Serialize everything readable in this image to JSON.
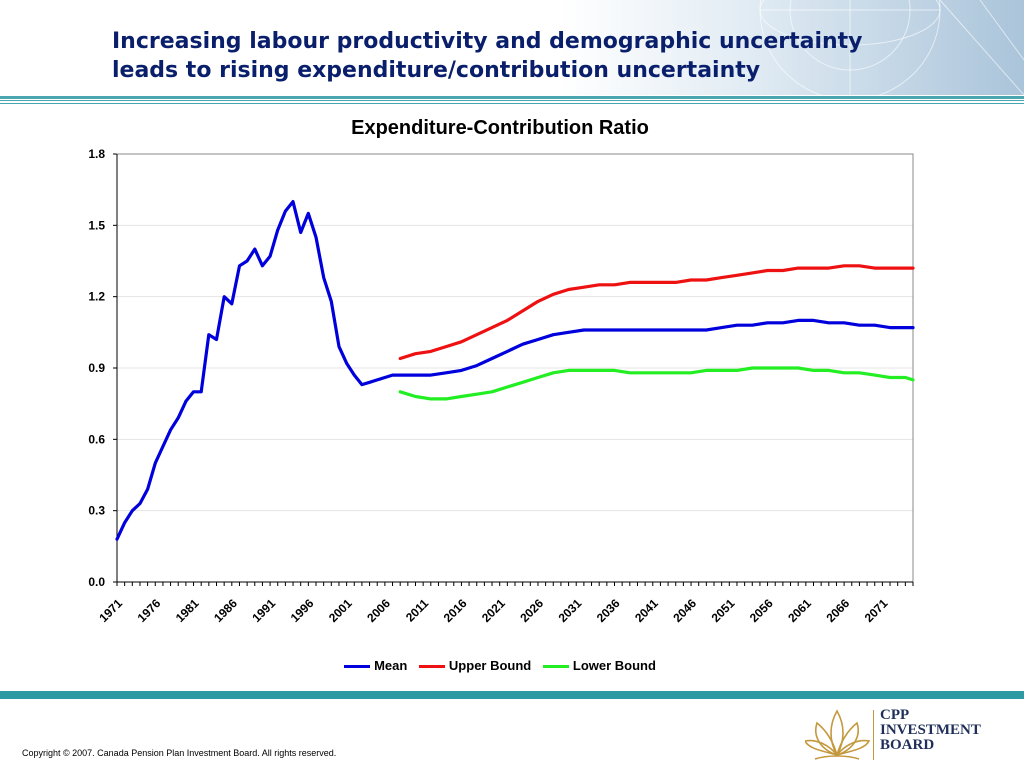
{
  "slide": {
    "title_line1": "Increasing labour productivity and demographic uncertainty",
    "title_line2": "leads to rising expenditure/contribution uncertainty",
    "copyright": "Copyright © 2007. Canada Pension Plan Investment Board. All rights reserved.",
    "logo_line1": "CPP",
    "logo_line2": "INVESTMENT",
    "logo_line3": "BOARD"
  },
  "colors": {
    "mean": "#0000dd",
    "upper": "#ee1111",
    "lower": "#22ee22",
    "accent": "#2e9aa3",
    "title": "#0a1f6b"
  },
  "chart_data": {
    "type": "line",
    "title": "Expenditure-Contribution Ratio",
    "xlabel": "",
    "ylabel": "",
    "ylim": [
      0,
      1.8
    ],
    "yticks": [
      0.0,
      0.3,
      0.6,
      0.9,
      1.2,
      1.5,
      1.8
    ],
    "ytick_labels": [
      "0.0",
      "0.3",
      "0.6",
      "0.9",
      "1.2",
      "1.5",
      "1.8"
    ],
    "xlim": [
      1971,
      2075
    ],
    "xtick_labels": [
      "1971",
      "1976",
      "1981",
      "1986",
      "1991",
      "1996",
      "2001",
      "2006",
      "2011",
      "2016",
      "2021",
      "2026",
      "2031",
      "2036",
      "2041",
      "2046",
      "2051",
      "2056",
      "2061",
      "2066",
      "2071"
    ],
    "grid": true,
    "legend": "bottom",
    "series": [
      {
        "name": "Mean",
        "color": "#0000dd",
        "x": [
          1971,
          1972,
          1973,
          1974,
          1975,
          1976,
          1977,
          1978,
          1979,
          1980,
          1981,
          1982,
          1983,
          1984,
          1985,
          1986,
          1987,
          1988,
          1989,
          1990,
          1991,
          1992,
          1993,
          1994,
          1995,
          1996,
          1997,
          1998,
          1999,
          2000,
          2001,
          2002,
          2003,
          2004,
          2005,
          2006,
          2007,
          2008,
          2010,
          2012,
          2014,
          2016,
          2018,
          2020,
          2022,
          2024,
          2026,
          2028,
          2030,
          2032,
          2034,
          2036,
          2038,
          2040,
          2042,
          2044,
          2046,
          2048,
          2050,
          2052,
          2054,
          2056,
          2058,
          2060,
          2062,
          2064,
          2066,
          2068,
          2070,
          2072,
          2074,
          2075
        ],
        "values": [
          0.18,
          0.25,
          0.3,
          0.33,
          0.39,
          0.5,
          0.57,
          0.64,
          0.69,
          0.76,
          0.8,
          0.8,
          1.04,
          1.02,
          1.2,
          1.17,
          1.33,
          1.35,
          1.4,
          1.33,
          1.37,
          1.48,
          1.56,
          1.6,
          1.47,
          1.55,
          1.45,
          1.28,
          1.18,
          0.99,
          0.92,
          0.87,
          0.83,
          0.84,
          0.85,
          0.86,
          0.87,
          0.87,
          0.87,
          0.87,
          0.88,
          0.89,
          0.91,
          0.94,
          0.97,
          1.0,
          1.02,
          1.04,
          1.05,
          1.06,
          1.06,
          1.06,
          1.06,
          1.06,
          1.06,
          1.06,
          1.06,
          1.06,
          1.07,
          1.08,
          1.08,
          1.09,
          1.09,
          1.1,
          1.1,
          1.09,
          1.09,
          1.08,
          1.08,
          1.07,
          1.07,
          1.07
        ]
      },
      {
        "name": "Upper Bound",
        "color": "#ee1111",
        "x": [
          2008,
          2010,
          2012,
          2014,
          2016,
          2018,
          2020,
          2022,
          2024,
          2026,
          2028,
          2030,
          2032,
          2034,
          2036,
          2038,
          2040,
          2042,
          2044,
          2046,
          2048,
          2050,
          2052,
          2054,
          2056,
          2058,
          2060,
          2062,
          2064,
          2066,
          2068,
          2070,
          2072,
          2074,
          2075
        ],
        "values": [
          0.94,
          0.96,
          0.97,
          0.99,
          1.01,
          1.04,
          1.07,
          1.1,
          1.14,
          1.18,
          1.21,
          1.23,
          1.24,
          1.25,
          1.25,
          1.26,
          1.26,
          1.26,
          1.26,
          1.27,
          1.27,
          1.28,
          1.29,
          1.3,
          1.31,
          1.31,
          1.32,
          1.32,
          1.32,
          1.33,
          1.33,
          1.32,
          1.32,
          1.32,
          1.32
        ]
      },
      {
        "name": "Lower Bound",
        "color": "#22ee22",
        "x": [
          2008,
          2010,
          2012,
          2014,
          2016,
          2018,
          2020,
          2022,
          2024,
          2026,
          2028,
          2030,
          2032,
          2034,
          2036,
          2038,
          2040,
          2042,
          2044,
          2046,
          2048,
          2050,
          2052,
          2054,
          2056,
          2058,
          2060,
          2062,
          2064,
          2066,
          2068,
          2070,
          2072,
          2074,
          2075
        ],
        "values": [
          0.8,
          0.78,
          0.77,
          0.77,
          0.78,
          0.79,
          0.8,
          0.82,
          0.84,
          0.86,
          0.88,
          0.89,
          0.89,
          0.89,
          0.89,
          0.88,
          0.88,
          0.88,
          0.88,
          0.88,
          0.89,
          0.89,
          0.89,
          0.9,
          0.9,
          0.9,
          0.9,
          0.89,
          0.89,
          0.88,
          0.88,
          0.87,
          0.86,
          0.86,
          0.85
        ]
      }
    ]
  }
}
